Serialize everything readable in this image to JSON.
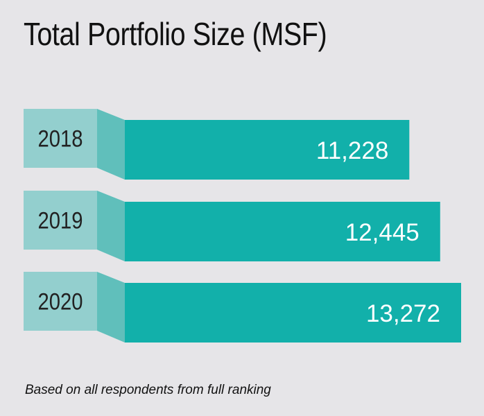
{
  "colors": {
    "background": "#e6e5e8",
    "bar": "#12b0aa",
    "label_box": "#93cfce",
    "connector": "#60bfbb",
    "value_text": "#ffffff",
    "category_text": "#222222"
  },
  "chart_data": {
    "type": "bar",
    "orientation": "horizontal",
    "title": "Total Portfolio Size (MSF)",
    "categories": [
      "2018",
      "2019",
      "2020"
    ],
    "values": [
      11228,
      12445,
      13272
    ],
    "value_labels": [
      "11,228",
      "12,445",
      "13,272"
    ],
    "xlabel": "",
    "ylabel": "",
    "grid": false,
    "legend": "none"
  },
  "footnote": "Based on all respondents from full ranking"
}
